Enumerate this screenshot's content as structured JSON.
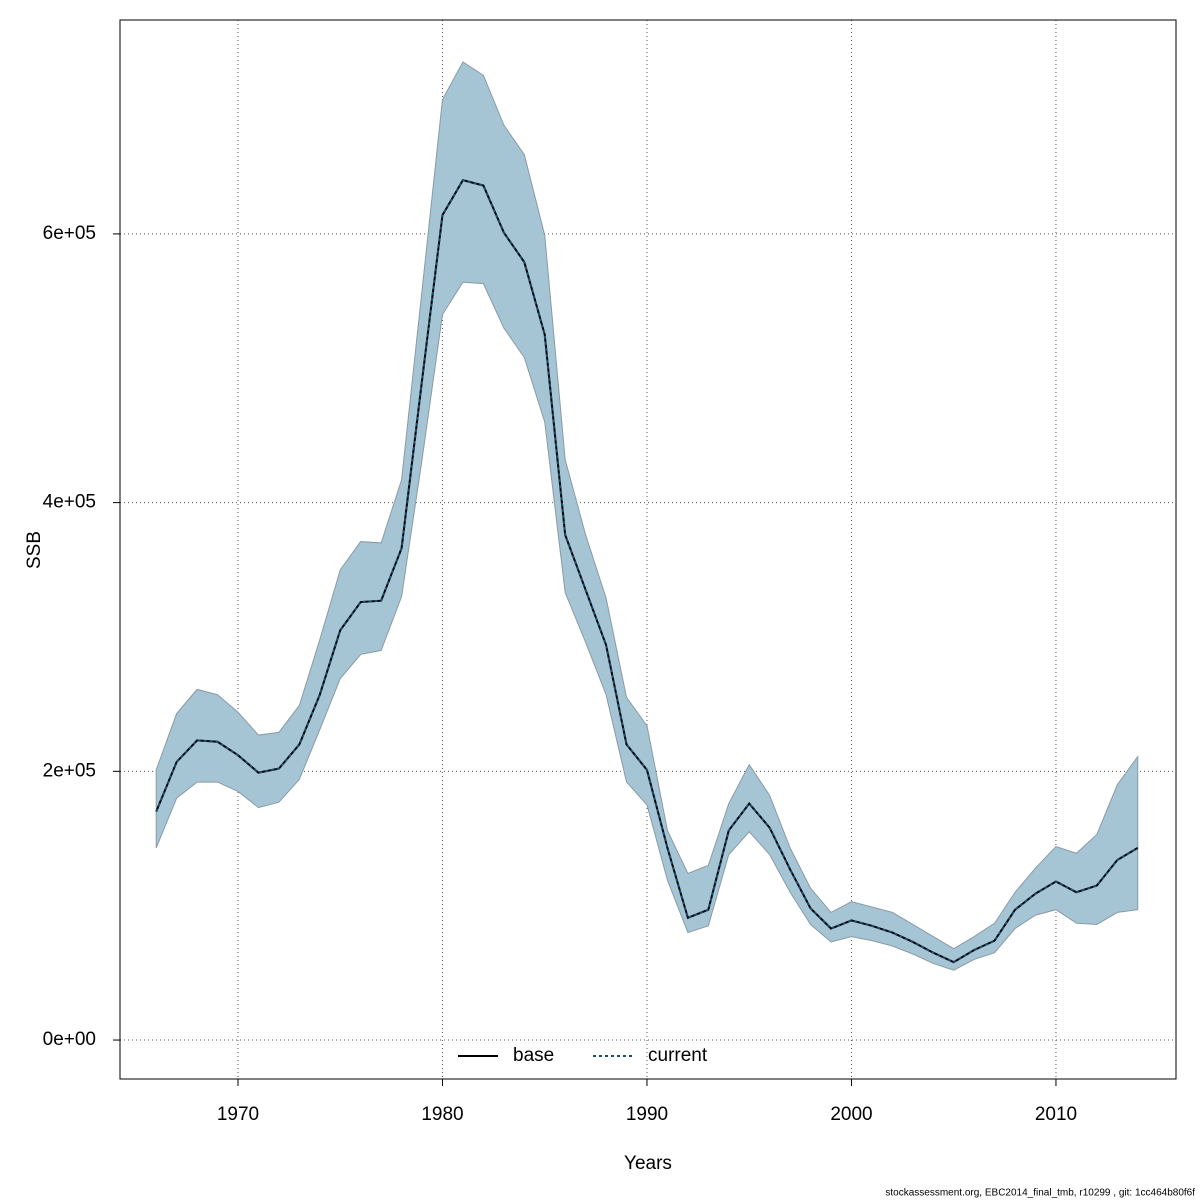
{
  "chart_data": {
    "type": "line",
    "xlabel": "Years",
    "ylabel": "SSB",
    "caption": "stockassessment.org, EBC2014_final_tmb, r10299 , git: 1cc464b80f6f",
    "x": [
      1966,
      1967,
      1968,
      1969,
      1970,
      1971,
      1972,
      1973,
      1974,
      1975,
      1976,
      1977,
      1978,
      1979,
      1980,
      1981,
      1982,
      1983,
      1984,
      1985,
      1986,
      1987,
      1988,
      1989,
      1990,
      1991,
      1992,
      1993,
      1994,
      1995,
      1996,
      1997,
      1998,
      1999,
      2000,
      2001,
      2002,
      2003,
      2004,
      2005,
      2006,
      2007,
      2008,
      2009,
      2010,
      2011,
      2012,
      2013,
      2014
    ],
    "series": [
      {
        "name": "base",
        "color": "#000000",
        "dash": false,
        "values": [
          170000,
          207000,
          223000,
          222000,
          212000,
          199000,
          202000,
          220000,
          257000,
          305000,
          326000,
          327000,
          366000,
          491000,
          614000,
          640000,
          636000,
          601000,
          579000,
          525000,
          376000,
          335000,
          294000,
          220000,
          201000,
          143000,
          91000,
          97000,
          156000,
          176000,
          158000,
          127000,
          98000,
          83000,
          89000,
          85000,
          80000,
          73000,
          65000,
          58000,
          67000,
          74000,
          97000,
          109000,
          118000,
          110000,
          115000,
          134000,
          143000
        ]
      },
      {
        "name": "current",
        "color": "#1b4f72",
        "dash": true,
        "values": [
          170000,
          207000,
          223000,
          222000,
          212000,
          199000,
          202000,
          220000,
          257000,
          305000,
          326000,
          327000,
          366000,
          491000,
          614000,
          640000,
          636000,
          601000,
          579000,
          525000,
          376000,
          335000,
          294000,
          220000,
          201000,
          143000,
          91000,
          97000,
          156000,
          176000,
          158000,
          127000,
          98000,
          83000,
          89000,
          85000,
          80000,
          73000,
          65000,
          58000,
          67000,
          74000,
          97000,
          109000,
          118000,
          110000,
          115000,
          134000,
          143000
        ]
      }
    ],
    "band": {
      "color": "#a5c4d4",
      "upper": [
        201000,
        243000,
        261000,
        257000,
        244000,
        227000,
        229000,
        249000,
        298000,
        350000,
        371000,
        370000,
        417000,
        558000,
        700000,
        728000,
        718000,
        681000,
        659000,
        599000,
        432000,
        376000,
        329000,
        255000,
        234000,
        156000,
        124000,
        130000,
        176000,
        205000,
        182000,
        143000,
        113000,
        95000,
        103000,
        99000,
        95000,
        86000,
        77000,
        68000,
        77000,
        87000,
        110000,
        128000,
        144000,
        139000,
        153000,
        190000,
        211000
      ],
      "lower": [
        143000,
        180000,
        192000,
        192000,
        185000,
        173000,
        177000,
        194000,
        231000,
        269000,
        287000,
        290000,
        330000,
        432000,
        540000,
        564000,
        563000,
        530000,
        508000,
        460000,
        333000,
        296000,
        257000,
        192000,
        175000,
        119000,
        80000,
        85000,
        138000,
        155000,
        138000,
        110000,
        86000,
        73000,
        77000,
        74000,
        70000,
        64000,
        57000,
        52000,
        60000,
        65000,
        83000,
        93000,
        97000,
        87000,
        86000,
        95000,
        97000
      ]
    },
    "xlim": [
      1964.23,
      2015.87
    ],
    "ylim": [
      -29000,
      759200
    ],
    "xticks": [
      1970,
      1980,
      1990,
      2000,
      2010
    ],
    "yticks": [
      {
        "value": 0,
        "label": "0e+00"
      },
      {
        "value": 200000,
        "label": "2e+05"
      },
      {
        "value": 400000,
        "label": "4e+05"
      },
      {
        "value": 600000,
        "label": "6e+05"
      }
    ],
    "grid": true,
    "legend": "bottom"
  }
}
